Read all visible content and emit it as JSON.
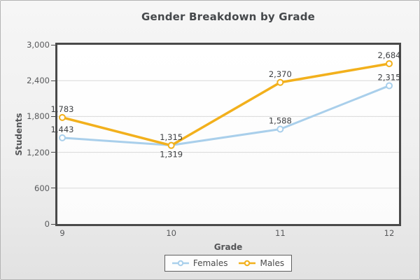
{
  "chart_data": {
    "type": "line",
    "title": "Gender Breakdown by Grade",
    "xlabel": "Grade",
    "ylabel": "Students",
    "categories": [
      "9",
      "10",
      "11",
      "12"
    ],
    "series": [
      {
        "name": "Females",
        "color": "#a9cfeb",
        "line_width": 3,
        "values": [
          1443,
          1319,
          1588,
          2315
        ],
        "point_labels": [
          "1,443",
          "1,319",
          "1,588",
          "2,315"
        ],
        "label_positions": [
          "above",
          "below",
          "above",
          "above"
        ]
      },
      {
        "name": "Males",
        "color": "#f2b01c",
        "line_width": 3.5,
        "values": [
          1783,
          1315,
          2370,
          2684
        ],
        "point_labels": [
          "1,783",
          "1,315",
          "2,370",
          "2,684"
        ],
        "label_positions": [
          "above",
          "above",
          "above",
          "above"
        ]
      }
    ],
    "ylim": [
      0,
      3000
    ],
    "yticks": [
      0,
      600,
      1200,
      1800,
      2400,
      3000
    ],
    "ytick_labels": [
      "0",
      "600",
      "1,200",
      "1,800",
      "2,400",
      "3,000"
    ],
    "grid": true,
    "legend_position": "bottom",
    "marker": "open-circle"
  },
  "colors": {
    "plot_border": "#4a4a4a",
    "gridline": "#d9d9d9",
    "marker_fill": "#ffffff",
    "panel_border": "#b4b4b4",
    "text": "#58595b"
  }
}
